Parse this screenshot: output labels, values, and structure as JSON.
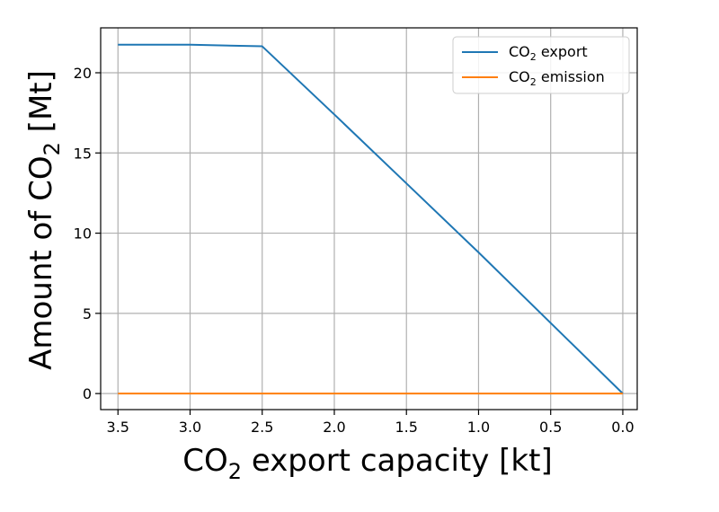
{
  "chart_data": {
    "type": "line",
    "title": "",
    "xlabel": {
      "pre": "CO",
      "sub": "2",
      "post": " export capacity [kt]"
    },
    "ylabel": {
      "pre": "Amount of CO",
      "sub": "2",
      "post": " [Mt]"
    },
    "xlim": [
      3.62,
      -0.1
    ],
    "ylim": [
      -1.0,
      22.8
    ],
    "x_ticks": [
      3.5,
      3.0,
      2.5,
      2.0,
      1.5,
      1.0,
      0.5,
      0.0
    ],
    "x_tick_labels": [
      "3.5",
      "3.0",
      "2.5",
      "2.0",
      "1.5",
      "1.0",
      "0.5",
      "0.0"
    ],
    "y_ticks": [
      0,
      5,
      10,
      15,
      20
    ],
    "y_tick_labels": [
      "0",
      "5",
      "10",
      "15",
      "20"
    ],
    "grid": true,
    "legend_position": "top-right",
    "series": [
      {
        "name": "CO2 export",
        "legend": {
          "pre": "CO",
          "sub": "2",
          "post": " export"
        },
        "color": "#1f77b4",
        "x": [
          3.5,
          3.0,
          2.5,
          2.0,
          1.5,
          1.0,
          0.5,
          0.0
        ],
        "y": [
          21.75,
          21.75,
          21.65,
          17.4,
          13.1,
          8.8,
          4.4,
          0.0
        ]
      },
      {
        "name": "CO2 emission",
        "legend": {
          "pre": "CO",
          "sub": "2",
          "post": " emission"
        },
        "color": "#ff7f0e",
        "x": [
          3.5,
          3.0,
          2.5,
          2.0,
          1.5,
          1.0,
          0.5,
          0.0
        ],
        "y": [
          0,
          0,
          0,
          0,
          0,
          0,
          0,
          0
        ]
      }
    ]
  }
}
